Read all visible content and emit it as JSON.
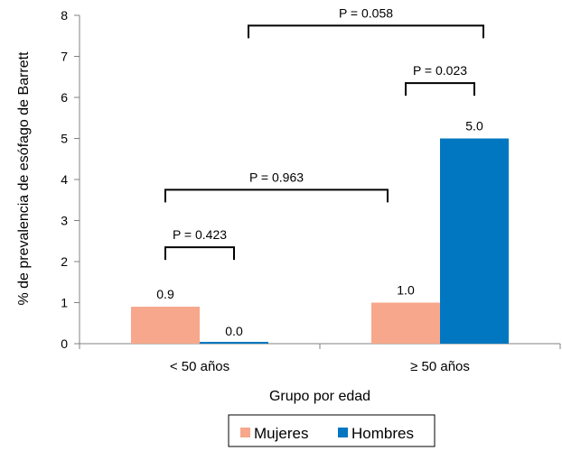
{
  "chart_data": {
    "type": "bar",
    "categories": [
      "< 50 años",
      "≥ 50 años"
    ],
    "series": [
      {
        "name": "Mujeres",
        "values": [
          0.9,
          1.0
        ],
        "labels": [
          "0.9",
          "1.0"
        ],
        "color": "#f7a78b"
      },
      {
        "name": "Hombres",
        "values": [
          0.0,
          5.0
        ],
        "labels": [
          "0.0",
          "5.0"
        ],
        "color": "#0077c0"
      }
    ],
    "xlabel": "Grupo por edad",
    "ylabel": "% de prevalencia de esófago de Barrett",
    "ylim": [
      0,
      8
    ],
    "yticks": [
      "0",
      "1",
      "2",
      "3",
      "4",
      "5",
      "6",
      "7",
      "8"
    ],
    "grid": false,
    "legend_position": "bottom",
    "annotations": [
      {
        "text": "P = 0.423",
        "from": "Mujeres < 50 años",
        "to": "Hombres < 50 años",
        "level": 2.35
      },
      {
        "text": "P = 0.963",
        "from": "< 50 años",
        "to": "≥ 50 años",
        "level": 3.75
      },
      {
        "text": "P = 0.023",
        "from": "Mujeres ≥ 50 años",
        "to": "Hombres ≥ 50 años",
        "level": 6.35
      },
      {
        "text": "P = 0.058",
        "from": "< 50 años",
        "to": "≥ 50 años",
        "level": 7.75
      }
    ]
  }
}
